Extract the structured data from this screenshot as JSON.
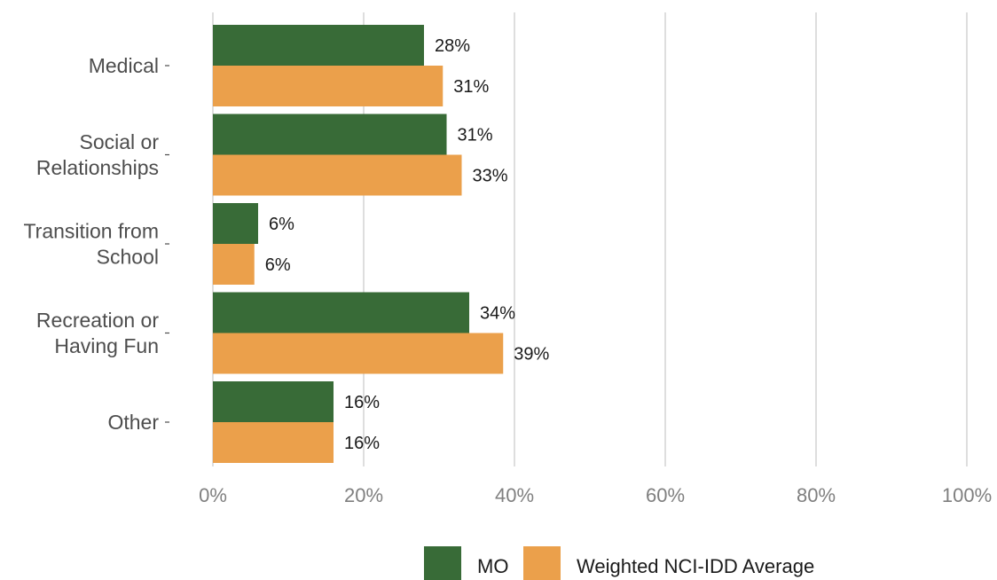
{
  "chart_data": {
    "type": "bar",
    "orientation": "horizontal",
    "categories": [
      [
        "Medical"
      ],
      [
        "Social or",
        "Relationships"
      ],
      [
        "Transition from",
        "School"
      ],
      [
        "Recreation or",
        "Having Fun"
      ],
      [
        "Other"
      ]
    ],
    "series": [
      {
        "name": "MO",
        "color": "#386b37",
        "values": [
          28,
          31,
          6,
          34,
          16
        ],
        "labels": [
          "28%",
          "31%",
          "6%",
          "34%",
          "16%"
        ]
      },
      {
        "name": "Weighted NCI-IDD Average",
        "color": "#eba04b",
        "values": [
          30.5,
          33,
          5.5,
          38.5,
          16
        ],
        "labels": [
          "31%",
          "33%",
          "6%",
          "39%",
          "16%"
        ]
      }
    ],
    "xlim": [
      0,
      100
    ],
    "xticks": [
      0,
      20,
      40,
      60,
      80,
      100
    ],
    "xtick_labels": [
      "0%",
      "20%",
      "40%",
      "60%",
      "80%",
      "100%"
    ],
    "grid": true,
    "legend_placement": "bottom"
  }
}
